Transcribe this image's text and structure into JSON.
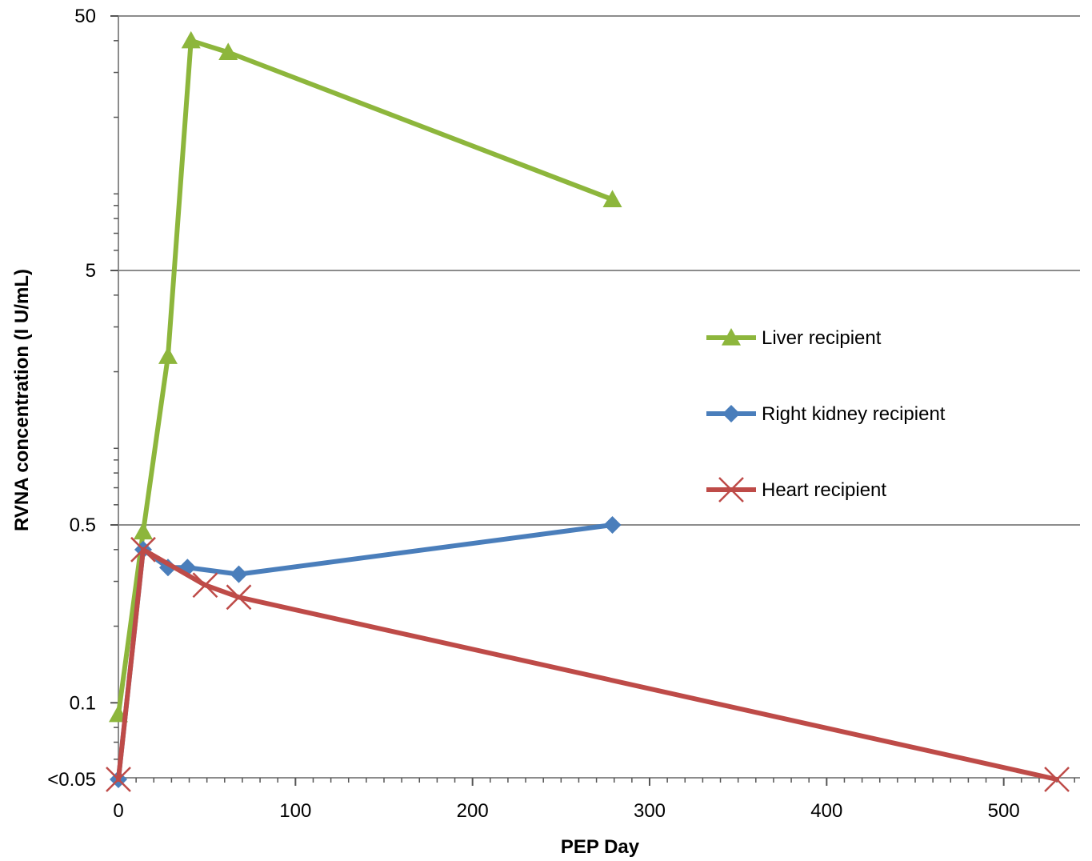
{
  "chart_data": {
    "type": "line",
    "title": "",
    "xlabel": "PEP Day",
    "ylabel": "RVNA concentration (I U/mL)",
    "x_scale": "linear",
    "y_scale": "log",
    "xlim": [
      0,
      540
    ],
    "ylim": [
      0.05,
      50
    ],
    "x_ticks": [
      0,
      100,
      200,
      300,
      400,
      500
    ],
    "x_tick_labels": [
      "0",
      "100",
      "200",
      "300",
      "400",
      "500"
    ],
    "y_ticks": [
      0.05,
      0.1,
      0.5,
      5,
      50
    ],
    "y_tick_labels": [
      "<0.05",
      "0.1",
      "0.5",
      "5",
      "50"
    ],
    "y_gridlines": [
      0.5,
      5,
      50
    ],
    "legend_position": "right",
    "series": [
      {
        "name": "Liver recipient",
        "color": "#8DB63C",
        "marker": "triangle",
        "x": [
          0,
          14,
          28,
          41,
          62,
          279
        ],
        "y": [
          0.09,
          0.47,
          2.3,
          40,
          36,
          9.5
        ]
      },
      {
        "name": "Right kidney recipient",
        "color": "#4A7EBB",
        "marker": "diamond",
        "x": [
          0,
          14,
          28,
          39,
          68,
          279
        ],
        "y": [
          0.05,
          0.4,
          0.34,
          0.34,
          0.32,
          0.5
        ]
      },
      {
        "name": "Heart recipient",
        "color": "#BE4B48",
        "marker": "x",
        "x": [
          0,
          14,
          49,
          68,
          530
        ],
        "y": [
          0.05,
          0.4,
          0.29,
          0.26,
          0.05
        ]
      }
    ]
  }
}
